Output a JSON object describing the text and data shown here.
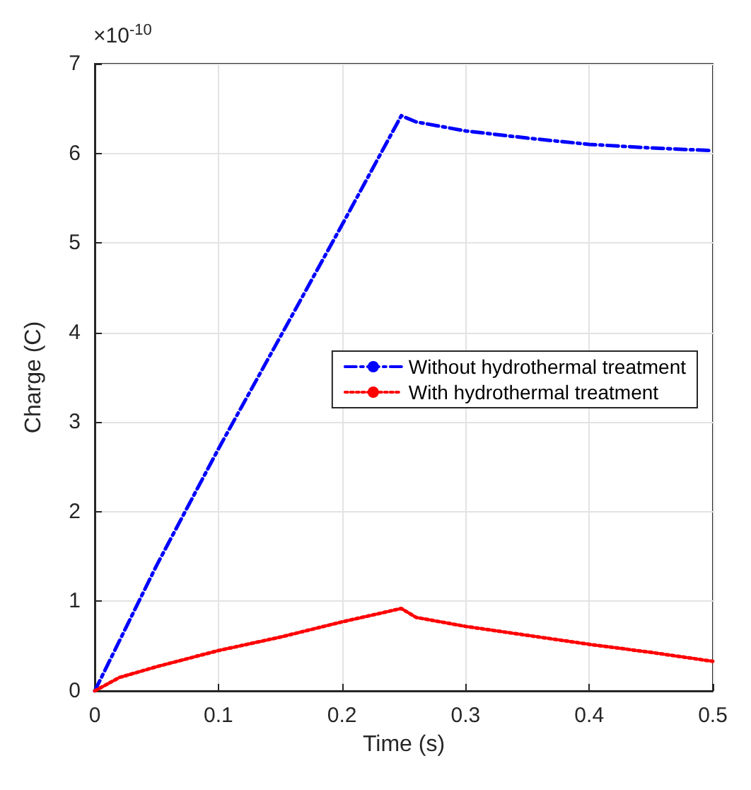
{
  "chart_data": {
    "type": "line",
    "xlabel": "Time (s)",
    "ylabel": "Charge (C)",
    "annotations": [
      "×10$^{-10}$"
    ],
    "xlim": [
      0,
      0.5
    ],
    "xticks": [
      0,
      0.1,
      0.2,
      0.3,
      0.4,
      0.5
    ],
    "ylim": [
      0,
      7
    ],
    "yticks": [
      0,
      1,
      2,
      3,
      4,
      5,
      6,
      7
    ],
    "grid": true,
    "legend": "right",
    "marker": "none",
    "series": [
      {
        "name": "Without hydrothermal treatment",
        "color": "#0000ff",
        "line_style": "dashed",
        "x": [
          0,
          0.05,
          0.1,
          0.15,
          0.2,
          0.248,
          0.26,
          0.3,
          0.35,
          0.4,
          0.45,
          0.5
        ],
        "values": [
          0,
          1.4,
          2.7,
          3.95,
          5.2,
          6.42,
          6.35,
          6.25,
          6.17,
          6.1,
          6.06,
          6.03
        ]
      },
      {
        "name": "With hydrothermal treatment",
        "color": "#ff0000",
        "line_style": "dotted",
        "x": [
          0,
          0.02,
          0.05,
          0.1,
          0.15,
          0.2,
          0.248,
          0.26,
          0.3,
          0.35,
          0.4,
          0.45,
          0.5
        ],
        "values": [
          0,
          0.15,
          0.27,
          0.45,
          0.6,
          0.77,
          0.92,
          0.82,
          0.72,
          0.62,
          0.52,
          0.43,
          0.33
        ]
      }
    ]
  }
}
